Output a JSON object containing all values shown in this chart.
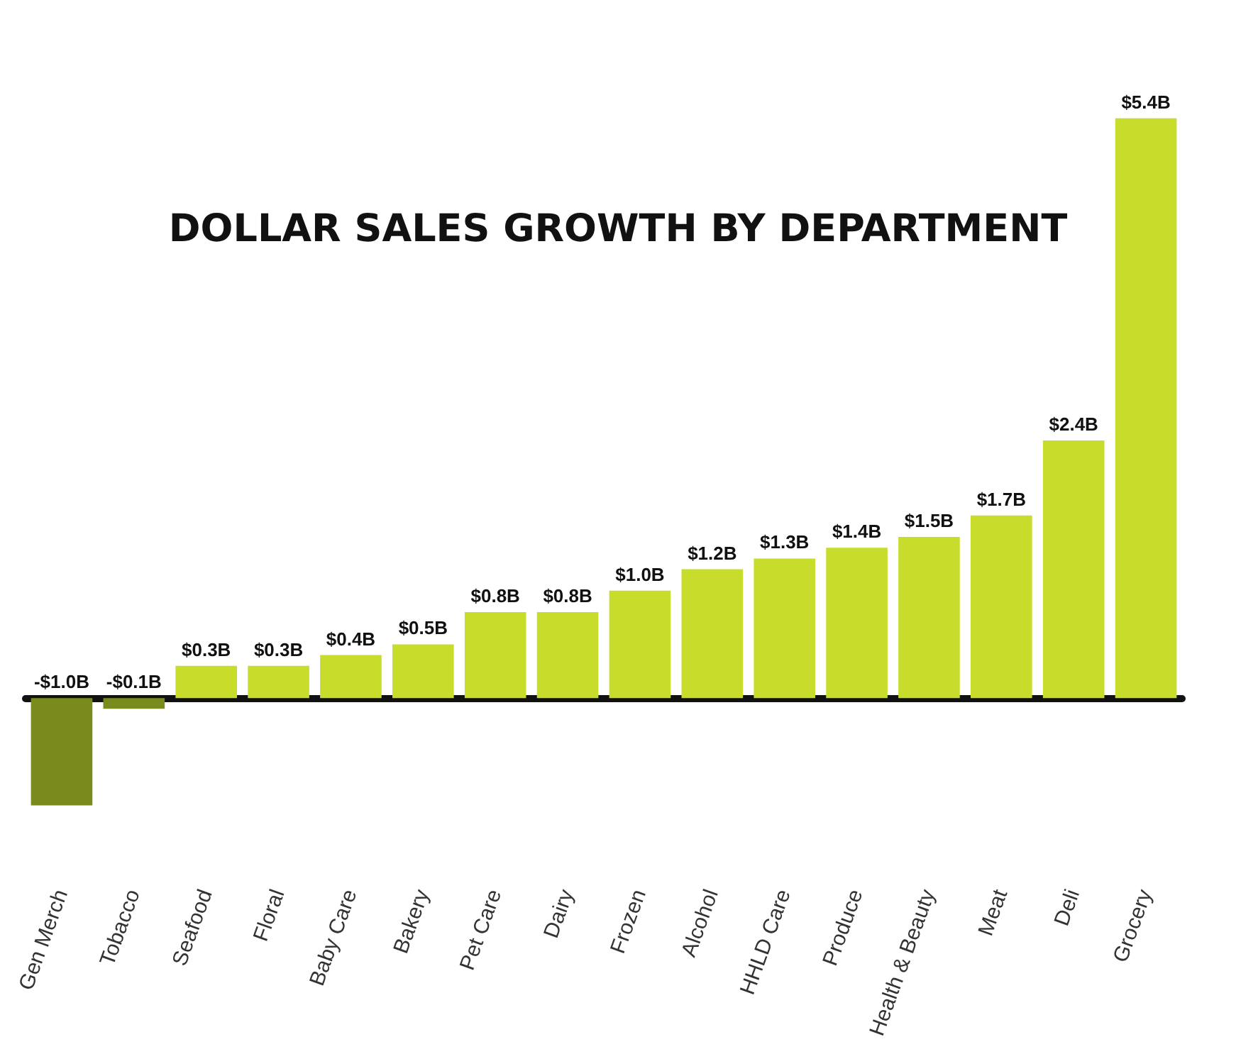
{
  "chart_data": {
    "type": "bar",
    "title": "DOLLAR SALES GROWTH BY DEPARTMENT",
    "categories": [
      "Gen Merch",
      "Tobacco",
      "Seafood",
      "Floral",
      "Baby Care",
      "Bakery",
      "Pet Care",
      "Dairy",
      "Frozen",
      "Alcohol",
      "HHLD Care",
      "Produce",
      "Health & Beauty",
      "Meat",
      "Deli",
      "Grocery"
    ],
    "values": [
      -1.0,
      -0.1,
      0.3,
      0.3,
      0.4,
      0.5,
      0.8,
      0.8,
      1.0,
      1.2,
      1.3,
      1.4,
      1.5,
      1.7,
      2.4,
      5.4
    ],
    "value_labels": [
      "-$1.0B",
      "-$0.1B",
      "$0.3B",
      "$0.3B",
      "$0.4B",
      "$0.5B",
      "$0.8B",
      "$0.8B",
      "$1.0B",
      "$1.2B",
      "$1.3B",
      "$1.4B",
      "$1.5B",
      "$1.7B",
      "$2.4B",
      "$5.4B"
    ],
    "colors": [
      "#7b8a1c",
      "#7b8a1c",
      "#c8dc2c",
      "#c8dc2c",
      "#c8dc2c",
      "#c8dc2c",
      "#c8dc2c",
      "#c8dc2c",
      "#c8dc2c",
      "#c8dc2c",
      "#c8dc2c",
      "#c8dc2c",
      "#c8dc2c",
      "#c8dc2c",
      "#c8dc2c",
      "#c8dc2c"
    ],
    "grid": false
  }
}
